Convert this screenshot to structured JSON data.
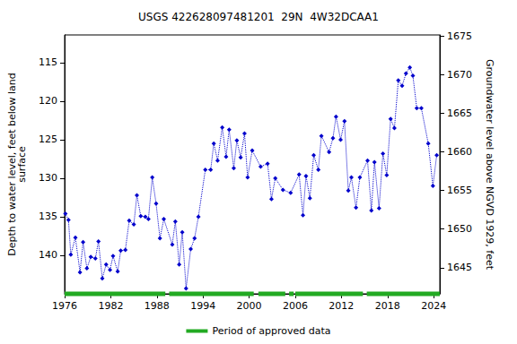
{
  "chart_data": {
    "type": "line",
    "title": "USGS 422628097481201  29N  4W32DCAA1",
    "x_label": "",
    "y_label": "Depth to water level, feet below land\nsurface",
    "y2_label": "Groundwater level above NGVD 1929, feet",
    "xlim": [
      1976,
      2024.8
    ],
    "xticks": [
      1976,
      1982,
      1988,
      1994,
      2000,
      2006,
      2012,
      2018,
      2024
    ],
    "ylim": [
      145,
      111.4
    ],
    "yticks": [
      115,
      120,
      125,
      130,
      135,
      140
    ],
    "y2lim": [
      1641.6,
      1675.2
    ],
    "y2ticks": [
      1645,
      1650,
      1655,
      1660,
      1665,
      1670,
      1675
    ],
    "grid": false,
    "legend": "bottom",
    "series": [
      {
        "name": "Depth to water level",
        "color": "#0000cc",
        "marker": "diamond",
        "line_style": "dotted",
        "x": [
          1976.1,
          1976.5,
          1976.8,
          1977.4,
          1978.0,
          1978.4,
          1978.9,
          1979.4,
          1980.0,
          1980.4,
          1980.9,
          1981.4,
          1981.9,
          1982.3,
          1982.9,
          1983.3,
          1983.9,
          1984.4,
          1985.0,
          1985.4,
          1985.9,
          1986.5,
          1986.9,
          1987.4,
          1987.9,
          1988.4,
          1988.9,
          1990.0,
          1990.4,
          1990.9,
          1991.3,
          1991.8,
          1992.4,
          1992.9,
          1993.4,
          1994.3,
          1995.0,
          1995.4,
          1995.9,
          1996.5,
          1997.0,
          1997.4,
          1998.0,
          1998.4,
          1998.9,
          1999.4,
          1999.8,
          2000.4,
          2001.5,
          2002.4,
          2002.9,
          2003.4,
          2004.4,
          2005.4,
          2006.5,
          2007.0,
          2007.4,
          2007.9,
          2008.4,
          2009.0,
          2009.4,
          2010.4,
          2010.9,
          2011.3,
          2011.9,
          2012.4,
          2012.9,
          2013.3,
          2013.9,
          2014.4,
          2015.4,
          2015.9,
          2016.3,
          2016.9,
          2017.4,
          2017.9,
          2018.4,
          2018.9,
          2019.4,
          2019.9,
          2020.4,
          2020.9,
          2021.3,
          2021.8,
          2022.4,
          2023.3,
          2023.9,
          2024.4
        ],
        "values": [
          134.6,
          135.4,
          139.9,
          137.7,
          142.2,
          138.3,
          141.7,
          140.2,
          140.4,
          138.2,
          143.0,
          141.2,
          141.9,
          140.1,
          142.1,
          139.4,
          139.3,
          135.5,
          136.0,
          132.2,
          134.9,
          135.0,
          135.3,
          129.9,
          133.3,
          137.8,
          135.3,
          138.6,
          135.6,
          141.2,
          137.0,
          144.3,
          139.2,
          137.8,
          135.0,
          128.9,
          128.9,
          125.5,
          127.7,
          123.4,
          127.2,
          123.7,
          128.7,
          125.1,
          127.3,
          124.2,
          129.9,
          126.4,
          128.5,
          128.1,
          132.7,
          130.0,
          131.5,
          131.9,
          129.5,
          134.8,
          129.7,
          132.6,
          127.0,
          128.9,
          124.5,
          126.6,
          124.8,
          122.0,
          125.0,
          122.6,
          131.6,
          129.9,
          133.8,
          129.9,
          127.7,
          134.2,
          127.9,
          133.9,
          126.8,
          129.6,
          122.3,
          123.5,
          117.3,
          118.0,
          116.4,
          115.6,
          116.7,
          120.9,
          120.9,
          125.5,
          131.0,
          127.0
        ]
      }
    ],
    "approved_periods": {
      "name": "Period of approved data",
      "color": "#22aa22",
      "ranges": [
        [
          1976.0,
          1989.1
        ],
        [
          1989.6,
          2000.6
        ],
        [
          2001.2,
          2004.7
        ],
        [
          2005.2,
          2005.8
        ],
        [
          2006.0,
          2014.8
        ],
        [
          2015.3,
          2024.8
        ]
      ]
    }
  }
}
